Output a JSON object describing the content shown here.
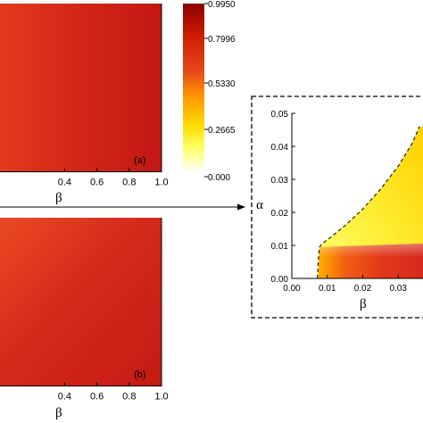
{
  "chart_data": [
    {
      "id": "a",
      "type": "heatmap",
      "panel_label": "(a)",
      "xlabel": "β",
      "x_ticks": [
        "0.4",
        "0.6",
        "0.8",
        "1.0"
      ],
      "xlim": [
        0.0,
        1.0
      ],
      "value_min": 0.8,
      "value_max": 0.995,
      "description": "nearly uniform red field, slightly darker toward larger β"
    },
    {
      "id": "b",
      "type": "heatmap",
      "panel_label": "(b)",
      "xlabel": "β",
      "x_ticks": [
        "0.4",
        "0.6",
        "0.8",
        "1.0"
      ],
      "xlim": [
        0.0,
        1.0
      ],
      "value_min": 0.8,
      "value_max": 0.995,
      "description": "nearly uniform red field, lighter near left/top-left"
    },
    {
      "id": "inset",
      "type": "heatmap",
      "xlabel": "β",
      "ylabel": "α",
      "x_ticks": [
        "0.00",
        "0.01",
        "0.02",
        "0.03"
      ],
      "y_ticks": [
        "0.00",
        "0.01",
        "0.02",
        "0.03",
        "0.04",
        "0.05"
      ],
      "xlim": [
        0.0,
        0.036
      ],
      "ylim": [
        0.0,
        0.05
      ],
      "boundary_points": [
        [
          0.0072,
          0.0
        ],
        [
          0.0075,
          0.006
        ],
        [
          0.0078,
          0.0095
        ],
        [
          0.0085,
          0.0105
        ],
        [
          0.011,
          0.0125
        ],
        [
          0.015,
          0.016
        ],
        [
          0.02,
          0.021
        ],
        [
          0.025,
          0.027
        ],
        [
          0.03,
          0.034
        ],
        [
          0.034,
          0.041
        ],
        [
          0.036,
          0.046
        ]
      ],
      "note": "region right of dashed boundary is non-zero: yellow above α≈0.01, orange-red below"
    }
  ],
  "colorbar": {
    "ticks": [
      "0.9950",
      "0.7996",
      "0.5330",
      "0.2665",
      "0.000"
    ],
    "max": 0.995,
    "min": 0.0,
    "colors": [
      "#8b0000",
      "#cc1a00",
      "#e8481c",
      "#ff9900",
      "#ffdd00",
      "#ffff66",
      "#ffffff"
    ]
  }
}
